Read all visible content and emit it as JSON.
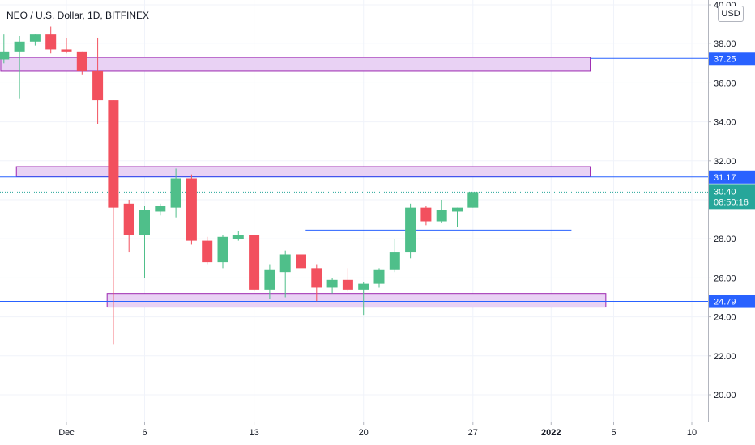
{
  "header": {
    "title": "NEO / U.S. Dollar, 1D, BITFINEX",
    "currency": "USD"
  },
  "colors": {
    "up": "#26a69a",
    "up_fill": "#4fbf8a",
    "down": "#ef5350",
    "down_fill": "#f2505e",
    "zone_fill": "#e9d2f4",
    "zone_stroke": "#9c27b0",
    "hline": "#2962ff",
    "last_price": "#26a69a"
  },
  "chart_data": {
    "type": "candlestick",
    "title": "NEO / U.S. Dollar, 1D, BITFINEX",
    "ylim": [
      19,
      40
    ],
    "y_ticks": [
      "20.00",
      "22.00",
      "24.00",
      "26.00",
      "28.00",
      "30.00",
      "32.00",
      "34.00",
      "36.00",
      "38.00",
      "40.00"
    ],
    "x_ticks": [
      {
        "label": "Dec",
        "day": 0
      },
      {
        "label": "6",
        "day": 5
      },
      {
        "label": "13",
        "day": 12
      },
      {
        "label": "20",
        "day": 19
      },
      {
        "label": "27",
        "day": 26
      },
      {
        "label": "2022",
        "day": 31
      },
      {
        "label": "5",
        "day": 35
      },
      {
        "label": "10",
        "day": 40
      }
    ],
    "x_range": [
      -4,
      42
    ],
    "candles": [
      {
        "day": -4,
        "open": 37.2,
        "high": 38.5,
        "low": 37.0,
        "close": 37.6
      },
      {
        "day": -3,
        "open": 37.6,
        "high": 38.4,
        "low": 35.2,
        "close": 38.1
      },
      {
        "day": -2,
        "open": 38.1,
        "high": 38.5,
        "low": 37.9,
        "close": 38.5
      },
      {
        "day": -1,
        "open": 38.5,
        "high": 38.9,
        "low": 37.5,
        "close": 37.7
      },
      {
        "day": 0,
        "open": 37.7,
        "high": 38.3,
        "low": 37.5,
        "close": 37.6
      },
      {
        "day": 1,
        "open": 37.6,
        "high": 37.6,
        "low": 36.4,
        "close": 36.6
      },
      {
        "day": 2,
        "open": 36.6,
        "high": 38.3,
        "low": 33.9,
        "close": 35.1
      },
      {
        "day": 3,
        "open": 35.1,
        "high": 35.1,
        "low": 22.6,
        "close": 29.6
      },
      {
        "day": 4,
        "open": 29.8,
        "high": 30.0,
        "low": 27.3,
        "close": 28.2
      },
      {
        "day": 5,
        "open": 28.2,
        "high": 29.7,
        "low": 26.0,
        "close": 29.5
      },
      {
        "day": 6,
        "open": 29.4,
        "high": 29.8,
        "low": 29.2,
        "close": 29.7
      },
      {
        "day": 7,
        "open": 29.6,
        "high": 31.6,
        "low": 29.1,
        "close": 31.1
      },
      {
        "day": 8,
        "open": 31.1,
        "high": 31.3,
        "low": 27.7,
        "close": 27.9
      },
      {
        "day": 9,
        "open": 27.9,
        "high": 28.1,
        "low": 26.7,
        "close": 26.8
      },
      {
        "day": 10,
        "open": 26.8,
        "high": 28.2,
        "low": 26.5,
        "close": 28.1
      },
      {
        "day": 11,
        "open": 28.0,
        "high": 28.4,
        "low": 27.9,
        "close": 28.2
      },
      {
        "day": 12,
        "open": 28.2,
        "high": 28.2,
        "low": 25.3,
        "close": 25.4
      },
      {
        "day": 13,
        "open": 25.4,
        "high": 26.7,
        "low": 24.9,
        "close": 26.4
      },
      {
        "day": 14,
        "open": 26.3,
        "high": 27.4,
        "low": 25.0,
        "close": 27.2
      },
      {
        "day": 15,
        "open": 27.2,
        "high": 28.4,
        "low": 26.4,
        "close": 26.5
      },
      {
        "day": 16,
        "open": 26.5,
        "high": 26.7,
        "low": 24.8,
        "close": 25.5
      },
      {
        "day": 17,
        "open": 25.5,
        "high": 26.0,
        "low": 25.2,
        "close": 25.9
      },
      {
        "day": 18,
        "open": 25.9,
        "high": 26.5,
        "low": 25.3,
        "close": 25.4
      },
      {
        "day": 19,
        "open": 25.4,
        "high": 25.8,
        "low": 24.1,
        "close": 25.7
      },
      {
        "day": 20,
        "open": 25.7,
        "high": 26.5,
        "low": 25.5,
        "close": 26.4
      },
      {
        "day": 21,
        "open": 26.4,
        "high": 28.0,
        "low": 26.3,
        "close": 27.3
      },
      {
        "day": 22,
        "open": 27.3,
        "high": 29.8,
        "low": 27.0,
        "close": 29.6
      },
      {
        "day": 23,
        "open": 29.6,
        "high": 29.7,
        "low": 28.7,
        "close": 28.9
      },
      {
        "day": 24,
        "open": 28.9,
        "high": 30.0,
        "low": 28.8,
        "close": 29.5
      },
      {
        "day": 25,
        "open": 29.4,
        "high": 29.6,
        "low": 28.6,
        "close": 29.6
      },
      {
        "day": 26,
        "open": 29.6,
        "high": 30.4,
        "low": 29.6,
        "close": 30.4
      }
    ],
    "zones": [
      {
        "day_start": -4.2,
        "day_end": 33.5,
        "low": 36.6,
        "high": 37.3
      },
      {
        "day_start": -3.2,
        "day_end": 33.5,
        "low": 31.2,
        "high": 31.7
      },
      {
        "day_start": 2.6,
        "day_end": 34.5,
        "low": 24.5,
        "high": 25.2
      }
    ],
    "hlines": [
      {
        "value": 37.25,
        "label": "37.25",
        "day_start": 33.5
      },
      {
        "value": 31.17,
        "label": "31.17",
        "day_start": -4.5
      },
      {
        "value": 24.79,
        "label": "24.79",
        "day_start": -4.5
      }
    ],
    "segment": {
      "value": 28.45,
      "day_start": 15.3,
      "day_end": 32.3
    },
    "last_price": {
      "value": 30.4,
      "label": "30.40",
      "countdown": "08:50:16"
    }
  }
}
